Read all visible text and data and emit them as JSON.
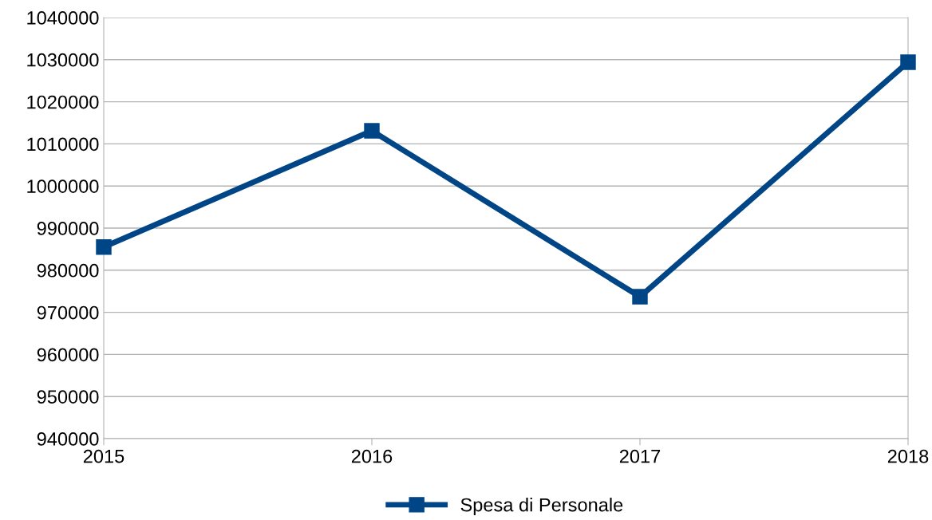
{
  "chart_data": {
    "type": "line",
    "x": [
      2015,
      2016,
      2017,
      2018
    ],
    "series": [
      {
        "name": "Spesa di Personale",
        "color": "#004586",
        "values": [
          985500,
          1013100,
          973700,
          1029400
        ]
      }
    ],
    "xlim": [
      2015,
      2018
    ],
    "xticks": [
      2015,
      2016,
      2017,
      2018
    ],
    "ylim": [
      940000,
      1040000
    ],
    "yticks": [
      940000,
      950000,
      960000,
      970000,
      980000,
      990000,
      1000000,
      1010000,
      1020000,
      1030000,
      1040000
    ],
    "grid": "y",
    "legend": "bottom",
    "marker": "square",
    "line_style": "solid"
  }
}
